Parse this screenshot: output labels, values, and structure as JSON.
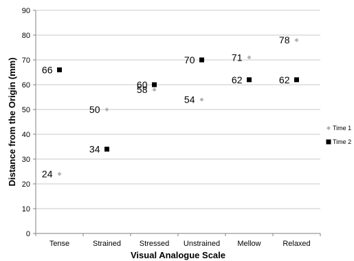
{
  "chart_data": {
    "type": "scatter",
    "title": "",
    "xlabel": "Visual Analogue Scale",
    "ylabel": "Distance from the Origin (mm)",
    "categories": [
      "Tense",
      "Strained",
      "Stressed",
      "Unstrained",
      "Mellow",
      "Relaxed"
    ],
    "ylim": [
      0,
      90
    ],
    "yticks": [
      0,
      10,
      20,
      30,
      40,
      50,
      60,
      70,
      80,
      90
    ],
    "grid": "horizontal",
    "legend_position": "right",
    "series": [
      {
        "name": "Time 1",
        "marker": "diamond",
        "color": "#b3b3b3",
        "values": [
          24,
          50,
          58,
          54,
          71,
          78
        ],
        "labels": [
          "24",
          "50",
          "58",
          "54",
          "71",
          "78"
        ]
      },
      {
        "name": "Time 2",
        "marker": "square",
        "color": "#000000",
        "values": [
          66,
          34,
          60,
          70,
          62,
          62
        ],
        "labels": [
          "66",
          "34",
          "60",
          "70",
          "62",
          "62"
        ]
      }
    ]
  }
}
